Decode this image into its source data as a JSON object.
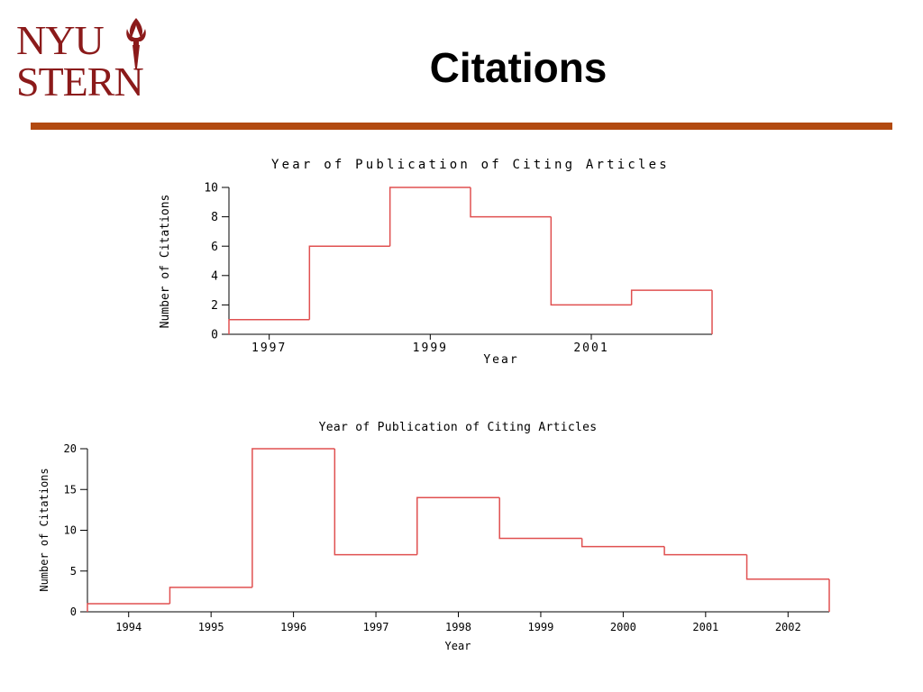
{
  "slide": {
    "title": "Citations",
    "logo_line1": "NYU",
    "logo_line2": "STERN",
    "accent": "#b24a10",
    "logo_color": "#8b1a1a"
  },
  "chart_data": [
    {
      "type": "step",
      "title": "Year of Publication of Citing Articles",
      "xlabel": "Year",
      "ylabel": "Number of Citations",
      "x": [
        1996.5,
        1997.5,
        1998.5,
        1999.5,
        2000.5,
        2001.5
      ],
      "values": [
        1,
        6,
        10,
        8,
        2,
        3
      ],
      "xlim": [
        1996.5,
        2002.5
      ],
      "ylim": [
        0,
        10
      ],
      "xticks": [
        1997,
        1999,
        2001
      ],
      "yticks": [
        0,
        2,
        4,
        6,
        8,
        10
      ],
      "color": "#e05050"
    },
    {
      "type": "step",
      "title": "Year of Publication of Citing Articles",
      "xlabel": "Year",
      "ylabel": "Number of Citations",
      "x": [
        1993.5,
        1994.5,
        1995.5,
        1996.5,
        1997.5,
        1998.5,
        1999.5,
        2000.5,
        2001.5
      ],
      "values": [
        1,
        3,
        20,
        7,
        14,
        9,
        8,
        7,
        4
      ],
      "xlim": [
        1993.5,
        2002.5
      ],
      "ylim": [
        0,
        20
      ],
      "xticks": [
        1994,
        1995,
        1996,
        1997,
        1998,
        1999,
        2000,
        2001,
        2002
      ],
      "yticks": [
        0,
        5,
        10,
        15,
        20
      ],
      "color": "#e05050"
    }
  ]
}
